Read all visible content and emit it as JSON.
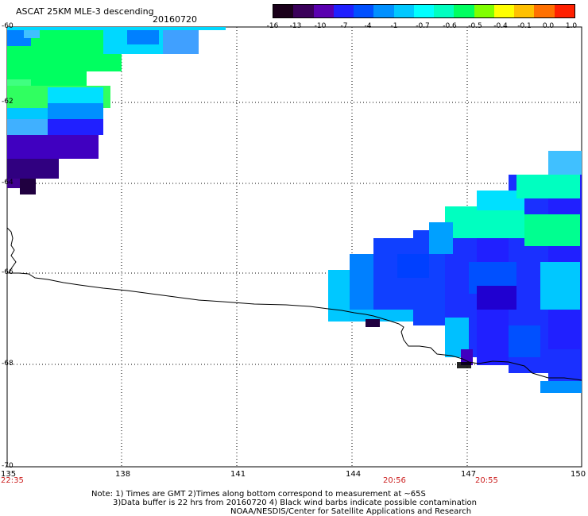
{
  "header": {
    "title": "ASCAT 25KM MLE-3 descending",
    "date": "20160720"
  },
  "colorbar": {
    "labels": [
      "-16",
      "-13",
      "-10",
      "-7",
      "-4",
      "-1",
      "-0.7",
      "-0.6",
      "-0.5",
      "-0.4",
      "-0.1",
      "0.0",
      "1.0"
    ],
    "colors": [
      "#1a001a",
      "#3a005a",
      "#5a00b0",
      "#2020ff",
      "#0050ff",
      "#0090ff",
      "#00c8ff",
      "#00ffff",
      "#00ffc0",
      "#00ff60",
      "#80ff00",
      "#ffff00",
      "#ffc000",
      "#ff7000",
      "#ff2000"
    ]
  },
  "axes": {
    "x_ticks": [
      "135",
      "138",
      "141",
      "144",
      "147",
      "150"
    ],
    "y_ticks": [
      "-60",
      "-62",
      "-64",
      "-66",
      "-68",
      "-70"
    ]
  },
  "times": {
    "left": "22:35",
    "mid": "20:56",
    "right": "20:55"
  },
  "notes": {
    "line1": "Note: 1) Times are GMT 2)Times along bottom correspond to measurement at ~65S",
    "line2": "3)Data buffer is 22 hrs from 20160720 4) Black wind barbs indicate possible contamination",
    "line3": "NOAA/NESDIS/Center for Satellite Applications and Research"
  }
}
